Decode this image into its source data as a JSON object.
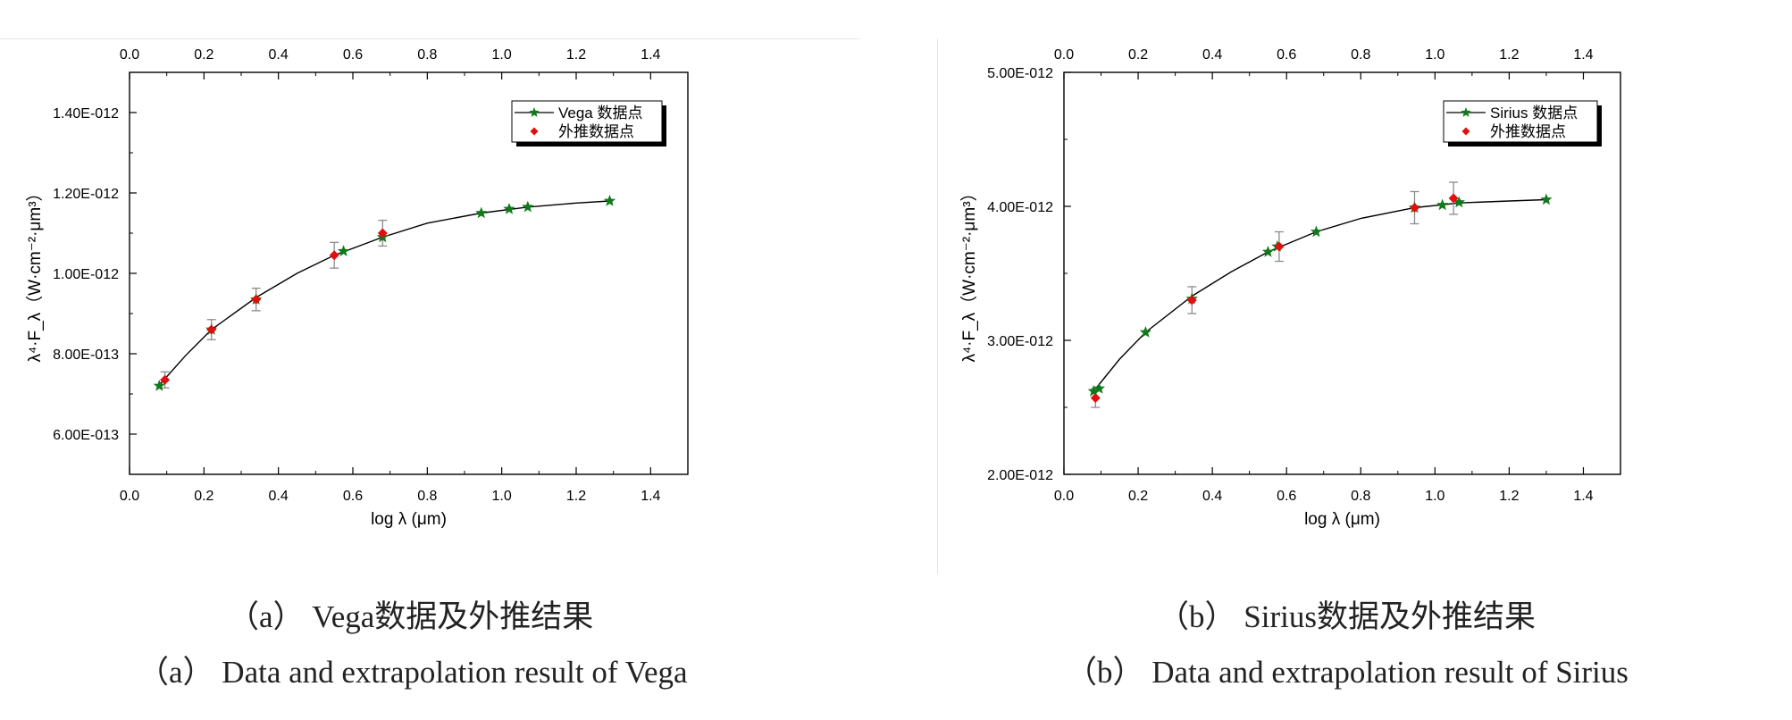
{
  "captions": {
    "a": {
      "tag": "（a）",
      "cn": "Vega数据及外推结果",
      "en": "Data and extrapolation result of Vega"
    },
    "b": {
      "tag": "（b）",
      "cn": "Sirius数据及外推结果",
      "en": "Data and extrapolation result of Sirius"
    }
  },
  "colors": {
    "data_star": "#0e7a1a",
    "extrap_diamond": "#e01010",
    "curve": "#000000",
    "errorbar": "#8c8c8c"
  },
  "chart_data": [
    {
      "id": "a",
      "type": "scatter",
      "xlabel": "log λ (μm)",
      "ylabel": "λ⁴·F_λ（W·cm⁻²·μm³）",
      "xlim": [
        0.0,
        1.5
      ],
      "ylim": [
        5e-13,
        1.5e-12
      ],
      "xticks": [
        0.0,
        0.2,
        0.4,
        0.6,
        0.8,
        1.0,
        1.2,
        1.4
      ],
      "xtick_labels": [
        "0.0",
        "0.2",
        "0.4",
        "0.6",
        "0.8",
        "1.0",
        "1.2",
        "1.4"
      ],
      "yticks": [
        6e-13,
        8e-13,
        1e-12,
        1.2e-12,
        1.4e-12
      ],
      "ytick_labels": [
        "6.00E-013",
        "8.00E-013",
        "1.00E-012",
        "1.20E-012",
        "1.40E-012"
      ],
      "top_axis_mirrored": true,
      "legend_position": "top-right",
      "series": [
        {
          "name": "Vega 数据点",
          "marker": "star",
          "line": true,
          "x": [
            0.08,
            0.22,
            0.34,
            0.575,
            0.68,
            0.945,
            1.02,
            1.07,
            1.29
          ],
          "y": [
            7.2e-13,
            8.6e-13,
            9.35e-13,
            1.055e-12,
            1.09e-12,
            1.15e-12,
            1.16e-12,
            1.165e-12,
            1.18e-12
          ]
        },
        {
          "name": "外推数据点",
          "marker": "diamond",
          "line": false,
          "x": [
            0.095,
            0.22,
            0.34,
            0.55,
            0.68
          ],
          "y": [
            7.35e-13,
            8.6e-13,
            9.35e-13,
            1.045e-12,
            1.1e-12
          ],
          "err": [
            2e-14,
            2.5e-14,
            2.8e-14,
            3.2e-14,
            3.2e-14
          ]
        }
      ],
      "curve": {
        "x": [
          0.08,
          0.15,
          0.22,
          0.34,
          0.45,
          0.55,
          0.68,
          0.8,
          0.945,
          1.07,
          1.2,
          1.29
        ],
        "y": [
          7.22e-13,
          7.95e-13,
          8.6e-13,
          9.4e-13,
          1e-12,
          1.045e-12,
          1.09e-12,
          1.125e-12,
          1.15e-12,
          1.165e-12,
          1.175e-12,
          1.18e-12
        ]
      }
    },
    {
      "id": "b",
      "type": "scatter",
      "xlabel": "log λ (μm)",
      "ylabel": "λ⁴·F_λ（W·cm⁻²·μm³）",
      "xlim": [
        0.0,
        1.5
      ],
      "ylim": [
        2e-12,
        5e-12
      ],
      "xticks": [
        0.0,
        0.2,
        0.4,
        0.6,
        0.8,
        1.0,
        1.2,
        1.4
      ],
      "xtick_labels": [
        "0.0",
        "0.2",
        "0.4",
        "0.6",
        "0.8",
        "1.0",
        "1.2",
        "1.4"
      ],
      "yticks": [
        2e-12,
        3e-12,
        4e-12,
        5e-12
      ],
      "ytick_labels": [
        "2.00E-012",
        "3.00E-012",
        "4.00E-012",
        "5.00E-012"
      ],
      "top_axis_mirrored": true,
      "legend_position": "top-right",
      "series": [
        {
          "name": "Sirius 数据点",
          "marker": "star",
          "line": true,
          "x": [
            0.08,
            0.095,
            0.22,
            0.345,
            0.55,
            0.575,
            0.68,
            0.945,
            1.02,
            1.065,
            1.3
          ],
          "y": [
            2.62e-12,
            2.64e-12,
            3.06e-12,
            3.31e-12,
            3.66e-12,
            3.7e-12,
            3.81e-12,
            3.99e-12,
            4.01e-12,
            4.03e-12,
            4.05e-12
          ]
        },
        {
          "name": "外推数据点",
          "marker": "diamond",
          "line": false,
          "x": [
            0.085,
            0.345,
            0.58,
            0.945,
            1.05
          ],
          "y": [
            2.57e-12,
            3.3e-12,
            3.7e-12,
            3.99e-12,
            4.06e-12
          ],
          "err": [
            7e-14,
            1e-13,
            1.1e-13,
            1.2e-13,
            1.2e-13
          ]
        }
      ],
      "curve": {
        "x": [
          0.08,
          0.15,
          0.22,
          0.345,
          0.45,
          0.55,
          0.68,
          0.8,
          0.945,
          1.065,
          1.2,
          1.3
        ],
        "y": [
          2.62e-12,
          2.86e-12,
          3.06e-12,
          3.33e-12,
          3.51e-12,
          3.66e-12,
          3.81e-12,
          3.91e-12,
          3.99e-12,
          4.025e-12,
          4.04e-12,
          4.05e-12
        ]
      }
    }
  ]
}
